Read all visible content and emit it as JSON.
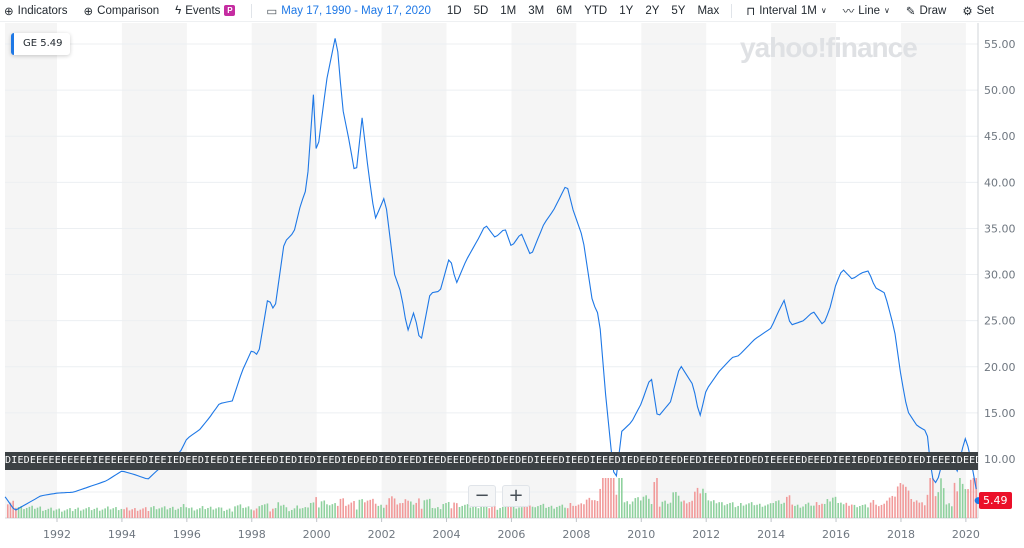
{
  "toolbar": {
    "indicators": "Indicators",
    "comparison": "Comparison",
    "events": "Events",
    "events_badge": "P",
    "date_range": "May 17, 1990 - May 17, 2020",
    "ranges": [
      "1D",
      "5D",
      "1M",
      "3M",
      "6M",
      "YTD",
      "1Y",
      "2Y",
      "5Y",
      "Max"
    ],
    "interval_label": "Interval",
    "interval_value": "1M",
    "chart_type": "Line",
    "draw": "Draw",
    "settings": "Set"
  },
  "legend": {
    "symbol": "GE",
    "value": "5.49"
  },
  "watermark": "yahoo!finance",
  "events_strip": "DIEDEEEEEEEEEEIEEEEEEEDIEEIEDEEDIEEDIEEIEEEDIEDIEDIEEDIEDEEDIEDIEEDIEEDEEEDEEDIDEEDEDIEEEDIEEDIEEEDIEDEEDIEEDEEDIEEEDIEDEDIEEEEEDEEEDIEEIEDEDIEEDIEDIEEEIDEEDIEEIEEEEEDEEEIDEEIEEDIEEEEDIEE",
  "zoom": {
    "minus": "−",
    "plus": "+"
  },
  "colors": {
    "line": "#1e78e6",
    "up": "#8fd19e",
    "down": "#f19a9a",
    "price_tag": "#eb0f29",
    "band": "#f5f5f5"
  },
  "chart_data": {
    "type": "line",
    "symbol": "GE",
    "last_price": "5.49",
    "ylim": [
      3.5,
      57
    ],
    "xlim": [
      1990.4,
      2020.7
    ],
    "yticks": [
      "55.00",
      "50.00",
      "45.00",
      "40.00",
      "35.00",
      "30.00",
      "25.00",
      "20.00",
      "15.00",
      "10.00"
    ],
    "ytick_values": [
      55,
      50,
      45,
      40,
      35,
      30,
      25,
      20,
      15,
      10
    ],
    "xticks": [
      "1992",
      "1994",
      "1996",
      "1998",
      "2000",
      "2002",
      "2004",
      "2006",
      "2008",
      "2010",
      "2012",
      "2014",
      "2016",
      "2018",
      "2020"
    ],
    "grid": true,
    "series": [
      {
        "points": [
          [
            1990.4,
            5.9
          ],
          [
            1990.7,
            4.4
          ],
          [
            1991.0,
            5.0
          ],
          [
            1991.5,
            6.0
          ],
          [
            1992.0,
            6.3
          ],
          [
            1992.5,
            6.4
          ],
          [
            1993.0,
            7.0
          ],
          [
            1993.5,
            7.6
          ],
          [
            1994.0,
            8.7
          ],
          [
            1994.4,
            8.3
          ],
          [
            1994.8,
            7.8
          ],
          [
            1995.1,
            8.8
          ],
          [
            1995.4,
            9.6
          ],
          [
            1995.8,
            10.8
          ],
          [
            1996.0,
            12.2
          ],
          [
            1996.4,
            13.2
          ],
          [
            1996.7,
            14.5
          ],
          [
            1997.0,
            16.0
          ],
          [
            1997.4,
            16.3
          ],
          [
            1997.7,
            19.5
          ],
          [
            1998.0,
            21.8
          ],
          [
            1998.2,
            21.2
          ],
          [
            1998.5,
            27.5
          ],
          [
            1998.7,
            26.0
          ],
          [
            1999.0,
            33.5
          ],
          [
            1999.3,
            34.6
          ],
          [
            1999.5,
            37.5
          ],
          [
            1999.7,
            39.5
          ],
          [
            1999.9,
            49.5
          ],
          [
            2000.0,
            42.5
          ],
          [
            2000.3,
            51.0
          ],
          [
            2000.6,
            56.2
          ],
          [
            2000.8,
            48.0
          ],
          [
            2001.0,
            44.5
          ],
          [
            2001.2,
            40.5
          ],
          [
            2001.4,
            47.0
          ],
          [
            2001.6,
            41.0
          ],
          [
            2001.8,
            36.0
          ],
          [
            2002.1,
            38.5
          ],
          [
            2002.4,
            30.0
          ],
          [
            2002.6,
            28.0
          ],
          [
            2002.8,
            23.8
          ],
          [
            2003.0,
            26.0
          ],
          [
            2003.2,
            22.5
          ],
          [
            2003.5,
            28.0
          ],
          [
            2003.8,
            28.2
          ],
          [
            2004.1,
            32.0
          ],
          [
            2004.3,
            29.0
          ],
          [
            2004.6,
            31.5
          ],
          [
            2005.0,
            34.0
          ],
          [
            2005.2,
            35.4
          ],
          [
            2005.5,
            34.0
          ],
          [
            2005.8,
            35.0
          ],
          [
            2006.0,
            33.0
          ],
          [
            2006.3,
            34.5
          ],
          [
            2006.6,
            32.0
          ],
          [
            2007.0,
            35.5
          ],
          [
            2007.3,
            37.0
          ],
          [
            2007.7,
            39.8
          ],
          [
            2007.9,
            37.0
          ],
          [
            2008.2,
            34.0
          ],
          [
            2008.5,
            27.0
          ],
          [
            2008.7,
            25.5
          ],
          [
            2008.9,
            17.0
          ],
          [
            2009.1,
            10.0
          ],
          [
            2009.2,
            7.2
          ],
          [
            2009.4,
            13.0
          ],
          [
            2009.7,
            14.0
          ],
          [
            2010.0,
            16.0
          ],
          [
            2010.3,
            19.0
          ],
          [
            2010.5,
            14.5
          ],
          [
            2010.9,
            16.2
          ],
          [
            2011.2,
            20.2
          ],
          [
            2011.6,
            18.0
          ],
          [
            2011.8,
            14.5
          ],
          [
            2012.0,
            17.5
          ],
          [
            2012.4,
            19.5
          ],
          [
            2012.8,
            21.0
          ],
          [
            2013.0,
            21.2
          ],
          [
            2013.5,
            23.0
          ],
          [
            2014.0,
            24.2
          ],
          [
            2014.2,
            25.8
          ],
          [
            2014.4,
            27.2
          ],
          [
            2014.6,
            24.5
          ],
          [
            2015.0,
            25.0
          ],
          [
            2015.3,
            26.0
          ],
          [
            2015.6,
            24.5
          ],
          [
            2015.8,
            26.2
          ],
          [
            2016.0,
            29.0
          ],
          [
            2016.2,
            30.6
          ],
          [
            2016.5,
            29.5
          ],
          [
            2016.8,
            30.2
          ],
          [
            2017.0,
            30.4
          ],
          [
            2017.2,
            28.6
          ],
          [
            2017.5,
            28.0
          ],
          [
            2017.8,
            24.0
          ],
          [
            2018.0,
            19.0
          ],
          [
            2018.2,
            15.2
          ],
          [
            2018.5,
            13.6
          ],
          [
            2018.8,
            13.0
          ],
          [
            2018.95,
            8.0
          ],
          [
            2019.1,
            7.3
          ],
          [
            2019.3,
            10.0
          ],
          [
            2019.6,
            10.4
          ],
          [
            2019.7,
            8.2
          ],
          [
            2019.9,
            11.2
          ],
          [
            2020.0,
            12.4
          ],
          [
            2020.15,
            10.0
          ],
          [
            2020.38,
            5.49
          ]
        ]
      }
    ]
  }
}
